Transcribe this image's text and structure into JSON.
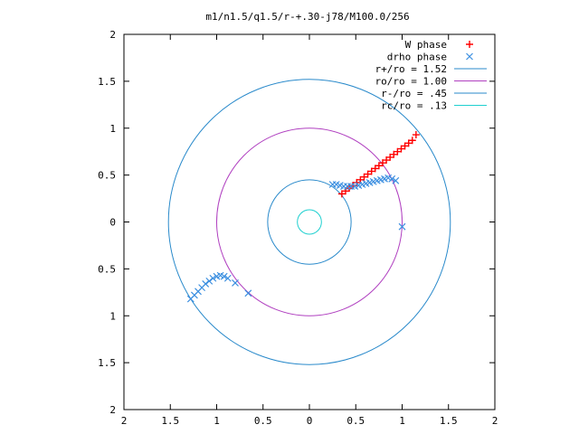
{
  "chart_data": {
    "type": "scatter",
    "title": "m1/n1.5/q1.5/r-+.30-j78/M100.0/256",
    "xlabel": "",
    "ylabel": "",
    "xlim": [
      -2,
      2
    ],
    "ylim": [
      -2,
      2
    ],
    "grid": false,
    "legend_position": "top-right",
    "x_ticks": [
      {
        "value": -2,
        "label": "2"
      },
      {
        "value": -1.5,
        "label": "1.5"
      },
      {
        "value": -1,
        "label": "1"
      },
      {
        "value": -0.5,
        "label": "0.5"
      },
      {
        "value": 0,
        "label": "0"
      },
      {
        "value": 0.5,
        "label": "0.5"
      },
      {
        "value": 1,
        "label": "1"
      },
      {
        "value": 1.5,
        "label": "1.5"
      },
      {
        "value": 2,
        "label": "2"
      }
    ],
    "y_ticks": [
      {
        "value": -2,
        "label": "2"
      },
      {
        "value": -1.5,
        "label": "1.5"
      },
      {
        "value": -1,
        "label": "1"
      },
      {
        "value": -0.5,
        "label": "0.5"
      },
      {
        "value": 0,
        "label": "0"
      },
      {
        "value": 0.5,
        "label": "0.5"
      },
      {
        "value": 1,
        "label": "1"
      },
      {
        "value": 1.5,
        "label": "1.5"
      },
      {
        "value": 2,
        "label": "2"
      }
    ],
    "series": [
      {
        "name": "W phase",
        "marker": "+",
        "color": "#ff0000",
        "points": [
          [
            0.35,
            0.3
          ],
          [
            0.39,
            0.33
          ],
          [
            0.43,
            0.36
          ],
          [
            0.47,
            0.39
          ],
          [
            0.51,
            0.42
          ],
          [
            0.55,
            0.45
          ],
          [
            0.59,
            0.48
          ],
          [
            0.63,
            0.51
          ],
          [
            0.67,
            0.54
          ],
          [
            0.71,
            0.57
          ],
          [
            0.75,
            0.6
          ],
          [
            0.79,
            0.63
          ],
          [
            0.83,
            0.66
          ],
          [
            0.87,
            0.69
          ],
          [
            0.91,
            0.72
          ],
          [
            0.95,
            0.75
          ],
          [
            0.99,
            0.78
          ],
          [
            1.03,
            0.81
          ],
          [
            1.07,
            0.84
          ],
          [
            1.11,
            0.87
          ],
          [
            1.15,
            0.93
          ]
        ]
      },
      {
        "name": "drho phase",
        "marker": "x",
        "color": "#3c8fe0",
        "points": [
          [
            0.25,
            0.4
          ],
          [
            0.29,
            0.4
          ],
          [
            0.33,
            0.39
          ],
          [
            0.37,
            0.38
          ],
          [
            0.41,
            0.38
          ],
          [
            0.45,
            0.38
          ],
          [
            0.49,
            0.38
          ],
          [
            0.53,
            0.39
          ],
          [
            0.57,
            0.4
          ],
          [
            0.61,
            0.41
          ],
          [
            0.65,
            0.42
          ],
          [
            0.69,
            0.43
          ],
          [
            0.73,
            0.44
          ],
          [
            0.77,
            0.45
          ],
          [
            0.81,
            0.46
          ],
          [
            0.85,
            0.47
          ],
          [
            0.89,
            0.46
          ],
          [
            0.93,
            0.44
          ],
          [
            1.0,
            -0.05
          ],
          [
            -1.28,
            -0.82
          ],
          [
            -1.24,
            -0.78
          ],
          [
            -1.2,
            -0.74
          ],
          [
            -1.16,
            -0.7
          ],
          [
            -1.12,
            -0.66
          ],
          [
            -1.08,
            -0.63
          ],
          [
            -1.04,
            -0.6
          ],
          [
            -1.0,
            -0.58
          ],
          [
            -0.96,
            -0.57
          ],
          [
            -0.92,
            -0.58
          ],
          [
            -0.88,
            -0.6
          ],
          [
            -0.8,
            -0.65
          ],
          [
            -0.66,
            -0.76
          ]
        ]
      }
    ],
    "circles": [
      {
        "name": "r+/ro = 1.52",
        "radius": 1.52,
        "color": "#2a8acb"
      },
      {
        "name": "ro/ro = 1.00",
        "radius": 1.0,
        "color": "#b040c0"
      },
      {
        "name": "r-/ro = .45",
        "radius": 0.45,
        "color": "#2a8acb"
      },
      {
        "name": "rc/ro = .13",
        "radius": 0.13,
        "color": "#20d0d0"
      }
    ]
  }
}
